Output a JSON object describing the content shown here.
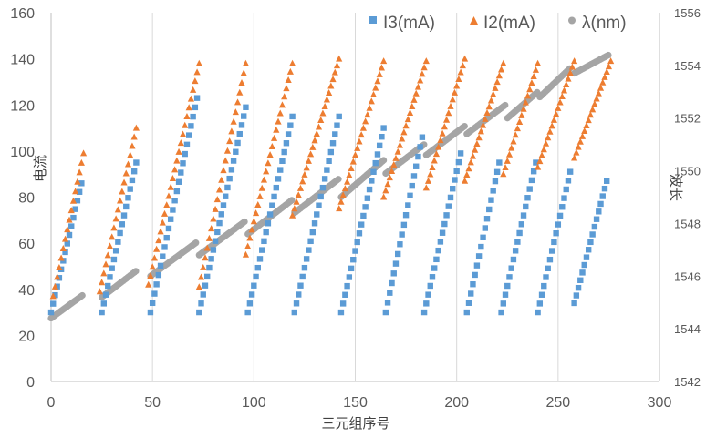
{
  "chart_data": {
    "type": "scatter",
    "xlabel": "三元组序号",
    "ylabel": "电流",
    "y2label": "波长",
    "xlim": [
      0,
      300
    ],
    "xticks": [
      0,
      50,
      100,
      150,
      200,
      250,
      300
    ],
    "ylim": [
      0,
      160
    ],
    "yticks": [
      0,
      20,
      40,
      60,
      80,
      100,
      120,
      140,
      160
    ],
    "y2lim": [
      1542,
      1556
    ],
    "y2ticks": [
      1542,
      1544,
      1546,
      1548,
      1550,
      1552,
      1554,
      1556
    ],
    "grid": "vertical",
    "legend_position": "top-right",
    "colors": {
      "I3": "#5b9bd5",
      "I2": "#ed7d31",
      "lambda": "#a5a5a5"
    },
    "series": [
      {
        "name": "I3(mA)",
        "axis": "left",
        "marker": "square",
        "segments": [
          {
            "x": [
              0,
              15
            ],
            "y": [
              30,
              86
            ]
          },
          {
            "x": [
              25,
              42
            ],
            "y": [
              30,
              95
            ]
          },
          {
            "x": [
              49,
              72
            ],
            "y": [
              30,
              123
            ]
          },
          {
            "x": [
              73,
              96
            ],
            "y": [
              30,
              119
            ]
          },
          {
            "x": [
              97,
              119
            ],
            "y": [
              30,
              115
            ]
          },
          {
            "x": [
              120,
              142
            ],
            "y": [
              30,
              115
            ]
          },
          {
            "x": [
              143,
              164
            ],
            "y": [
              30,
              110
            ]
          },
          {
            "x": [
              165,
              183
            ],
            "y": [
              30,
              106
            ]
          },
          {
            "x": [
              184,
              202
            ],
            "y": [
              30,
              99
            ]
          },
          {
            "x": [
              205,
              221
            ],
            "y": [
              30,
              95
            ]
          },
          {
            "x": [
              222,
              239
            ],
            "y": [
              30,
              95
            ]
          },
          {
            "x": [
              240,
              256
            ],
            "y": [
              30,
              91
            ]
          },
          {
            "x": [
              258,
              274
            ],
            "y": [
              34,
              87
            ]
          }
        ]
      },
      {
        "name": "I2(mA)",
        "axis": "left",
        "marker": "triangle",
        "segments": [
          {
            "x": [
              1,
              16
            ],
            "y": [
              37,
              99
            ]
          },
          {
            "x": [
              24,
              42
            ],
            "y": [
              39,
              110
            ]
          },
          {
            "x": [
              48,
              73
            ],
            "y": [
              42,
              138
            ]
          },
          {
            "x": [
              73,
              96
            ],
            "y": [
              41,
              138
            ]
          },
          {
            "x": [
              96,
              119
            ],
            "y": [
              55,
              138
            ]
          },
          {
            "x": [
              119,
              142
            ],
            "y": [
              72,
              140
            ]
          },
          {
            "x": [
              142,
              164
            ],
            "y": [
              75,
              139
            ]
          },
          {
            "x": [
              164,
              185
            ],
            "y": [
              80,
              139
            ]
          },
          {
            "x": [
              185,
              204
            ],
            "y": [
              84,
              140
            ]
          },
          {
            "x": [
              204,
              223
            ],
            "y": [
              87,
              138
            ]
          },
          {
            "x": [
              223,
              240
            ],
            "y": [
              90,
              138
            ]
          },
          {
            "x": [
              240,
              258
            ],
            "y": [
              93,
              139
            ]
          },
          {
            "x": [
              258,
              276
            ],
            "y": [
              97,
              139
            ]
          }
        ]
      },
      {
        "name": "λ(nm)",
        "axis": "right",
        "marker": "circle",
        "segments": [
          {
            "x": [
              0,
              16
            ],
            "y": [
              1544.4,
              1545.3
            ]
          },
          {
            "x": [
              25,
              42
            ],
            "y": [
              1545.2,
              1546.2
            ]
          },
          {
            "x": [
              49,
              72
            ],
            "y": [
              1546.0,
              1547.3
            ]
          },
          {
            "x": [
              73,
              96
            ],
            "y": [
              1546.8,
              1548.1
            ]
          },
          {
            "x": [
              97,
              119
            ],
            "y": [
              1547.6,
              1548.9
            ]
          },
          {
            "x": [
              120,
              142
            ],
            "y": [
              1548.4,
              1549.7
            ]
          },
          {
            "x": [
              143,
              164
            ],
            "y": [
              1549.0,
              1550.4
            ]
          },
          {
            "x": [
              165,
              184
            ],
            "y": [
              1549.9,
              1551.0
            ]
          },
          {
            "x": [
              185,
              204
            ],
            "y": [
              1550.6,
              1551.7
            ]
          },
          {
            "x": [
              205,
              224
            ],
            "y": [
              1551.4,
              1552.5
            ]
          },
          {
            "x": [
              225,
              240
            ],
            "y": [
              1552.0,
              1553.0
            ]
          },
          {
            "x": [
              241,
              256
            ],
            "y": [
              1552.8,
              1553.9
            ]
          },
          {
            "x": [
              258,
              275
            ],
            "y": [
              1553.7,
              1554.4
            ]
          }
        ]
      }
    ]
  }
}
